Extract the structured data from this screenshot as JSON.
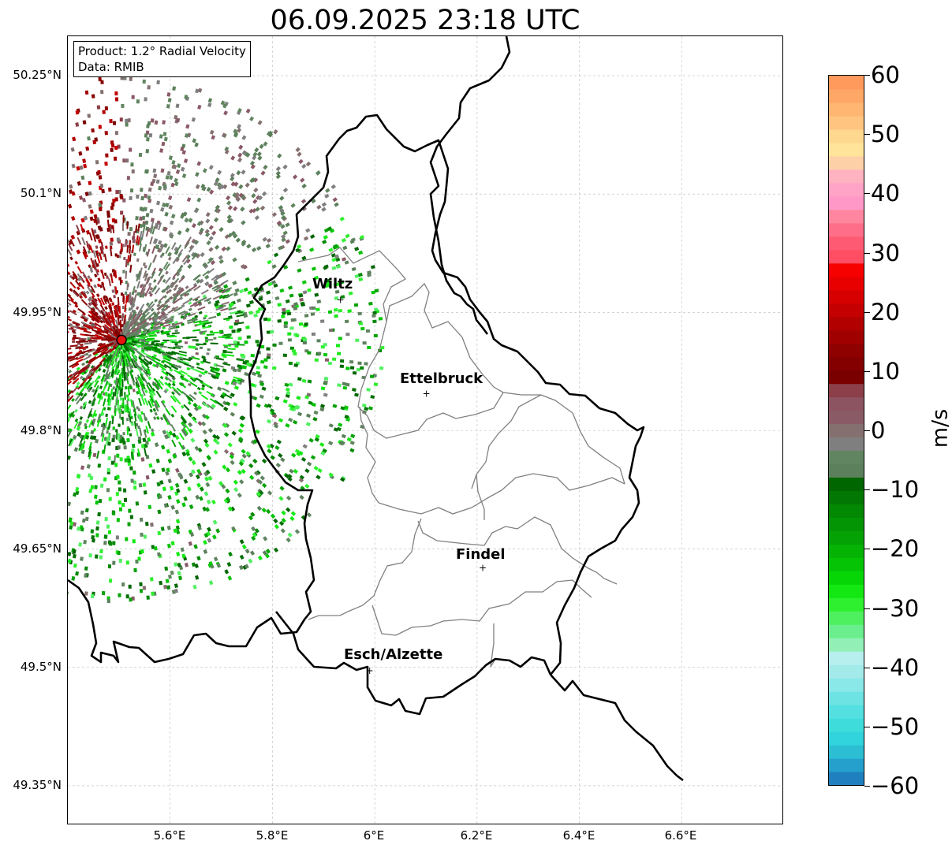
{
  "title": "06.09.2025 23:18 UTC",
  "info_box": {
    "line1": "Product: 1.2° Radial Velocity",
    "line2": "Data: RMIB"
  },
  "map": {
    "lon_range": [
      5.4,
      6.8
    ],
    "lat_range": [
      49.3,
      50.3
    ],
    "lat_ticks": [
      "50.25°N",
      "50.1°N",
      "49.95°N",
      "49.8°N",
      "49.65°N",
      "49.5°N",
      "49.35°N"
    ],
    "lon_ticks": [
      "5.6°E",
      "5.8°E",
      "6°E",
      "6.2°E",
      "6.4°E",
      "6.6°E"
    ],
    "radar_site": {
      "lon": 5.505,
      "lat": 49.915,
      "color": "#e8140f"
    },
    "cities": [
      {
        "name": "Wiltz",
        "lon": 5.933,
        "lat": 49.966
      },
      {
        "name": "Ettelbruck",
        "lon": 6.101,
        "lat": 49.847
      },
      {
        "name": "Findel",
        "lon": 6.211,
        "lat": 49.626
      },
      {
        "name": "Esch/Alzette",
        "lon": 5.99,
        "lat": 49.496
      }
    ]
  },
  "colorbar": {
    "unit": "m/s",
    "vmin": -60,
    "vmax": 60,
    "ticks": [
      "60",
      "50",
      "40",
      "30",
      "20",
      "10",
      "0",
      "−10",
      "−20",
      "−30",
      "−40",
      "−50",
      "−60"
    ],
    "colors": [
      "#1f7fbf",
      "#25a0cc",
      "#2cbfd4",
      "#31d4dc",
      "#3fdcdc",
      "#54e0e0",
      "#6ee3e3",
      "#8be8e8",
      "#a3eaea",
      "#b7efef",
      "#92f0b6",
      "#6bef8e",
      "#4ff05f",
      "#2ef02e",
      "#13e813",
      "#06d606",
      "#05c405",
      "#04b304",
      "#05a205",
      "#049504",
      "#038803",
      "#027702",
      "#006600",
      "#5b805b",
      "#608560",
      "#7f7f7f",
      "#857070",
      "#8a5a66",
      "#8c5460",
      "#8c3f48",
      "#7a0000",
      "#840000",
      "#8f0000",
      "#a00000",
      "#b20000",
      "#c40000",
      "#d60000",
      "#e80000",
      "#f60000",
      "#ff4d63",
      "#ff5a74",
      "#ff6e88",
      "#ff869e",
      "#ff98c6",
      "#ffa3c7",
      "#ffb3c0",
      "#fdd0a8",
      "#ffe49a",
      "#ffd890",
      "#ffc580",
      "#ffb672",
      "#ffa766",
      "#ff9a5c"
    ]
  }
}
